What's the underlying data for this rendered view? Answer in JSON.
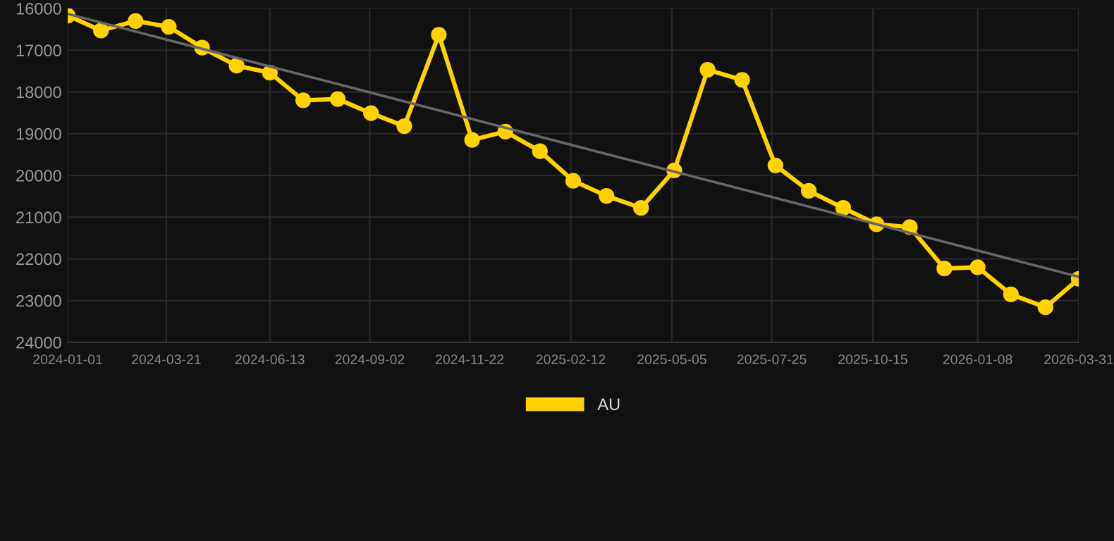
{
  "chart_data": {
    "type": "line",
    "x": [
      "2024-01-01",
      "2024-01-28",
      "2024-02-25",
      "2024-03-23",
      "2024-04-19",
      "2024-05-17",
      "2024-06-13",
      "2024-07-10",
      "2024-08-07",
      "2024-09-03",
      "2024-09-30",
      "2024-10-28",
      "2024-11-24",
      "2024-12-21",
      "2025-01-18",
      "2025-02-14",
      "2025-03-13",
      "2025-04-10",
      "2025-05-07",
      "2025-06-03",
      "2025-07-01",
      "2025-07-28",
      "2025-08-24",
      "2025-09-21",
      "2025-10-18",
      "2025-11-14",
      "2025-12-12",
      "2026-01-08",
      "2026-02-04",
      "2026-03-04",
      "2026-03-31"
    ],
    "series": [
      {
        "name": "AU",
        "color": "#ffd200",
        "marker": "circle",
        "values": [
          16170,
          16530,
          16300,
          16440,
          16940,
          17370,
          17540,
          18200,
          18170,
          18510,
          18820,
          16630,
          19150,
          18950,
          19420,
          20130,
          20490,
          20780,
          19880,
          17470,
          17710,
          19760,
          20370,
          20780,
          21170,
          21240,
          22230,
          22200,
          22850,
          23160,
          22480
        ]
      },
      {
        "type": "line",
        "color": "#666666",
        "marker": "none",
        "x": [
          "2024-01-01",
          "2026-03-31"
        ],
        "values": [
          16130,
          22430
        ]
      }
    ],
    "xlim": [
      "2024-01-01",
      "2026-03-31"
    ],
    "xticks": [
      "2024-01-01",
      "2024-03-21",
      "2024-06-13",
      "2024-09-02",
      "2024-11-22",
      "2025-02-12",
      "2025-05-05",
      "2025-07-25",
      "2025-10-15",
      "2026-01-08",
      "2026-03-31"
    ],
    "ylim": [
      24000,
      16000
    ],
    "yticks": [
      16000,
      17000,
      18000,
      19000,
      20000,
      21000,
      22000,
      23000,
      24000
    ],
    "grid": true,
    "legend": "bottom"
  }
}
